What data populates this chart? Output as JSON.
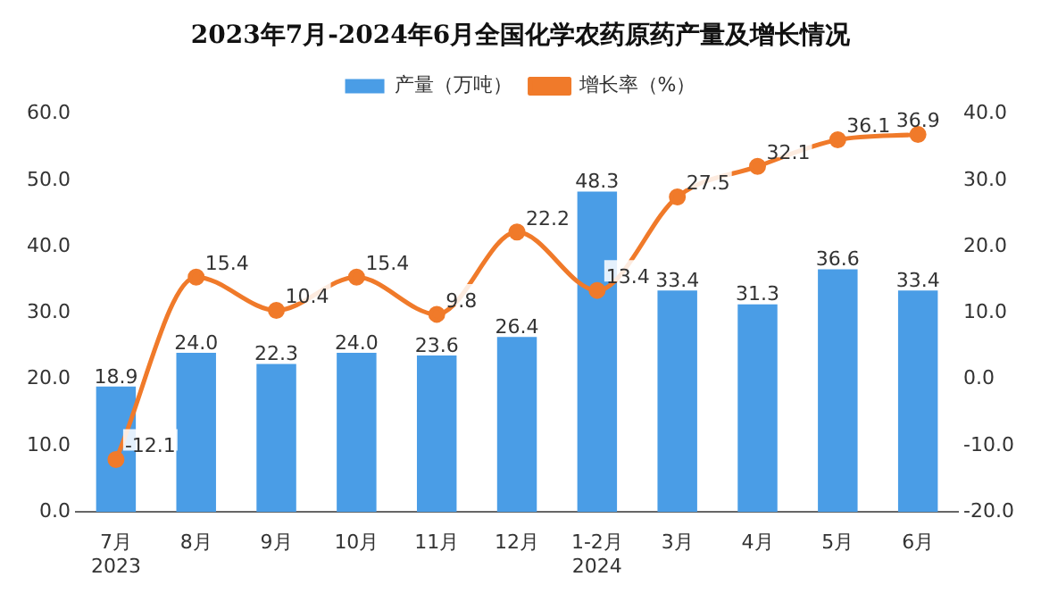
{
  "chart_data": {
    "type": "bar",
    "title": "2023年7月-2024年6月全国化学农药原药产量及增长情况",
    "categories": [
      "7月\n2023",
      "8月",
      "9月",
      "10月",
      "11月",
      "12月",
      "1-2月\n2024",
      "3月",
      "4月",
      "5月",
      "6月"
    ],
    "series": [
      {
        "name": "产量（万吨）",
        "color": "#4a9de6",
        "values": [
          18.9,
          24.0,
          22.3,
          24.0,
          23.6,
          26.4,
          48.3,
          33.4,
          31.3,
          36.6,
          33.4
        ],
        "value_labels": [
          "18.9",
          "24.0",
          "22.3",
          "24.0",
          "23.6",
          "26.4",
          "48.3",
          "33.4",
          "31.3",
          "36.6",
          "33.4"
        ]
      },
      {
        "name": "增长率（%）",
        "type": "line",
        "axis": "y2",
        "color": "#f07a2a",
        "marker": "circle",
        "values": [
          -12.1,
          15.4,
          10.4,
          15.4,
          9.8,
          22.2,
          13.4,
          27.5,
          32.1,
          36.1,
          36.9
        ],
        "value_labels": [
          "-12.1",
          "15.4",
          "10.4",
          "15.4",
          "9.8",
          "22.2",
          "13.4",
          "27.5",
          "32.1",
          "36.1",
          "36.9"
        ]
      }
    ],
    "ylim": [
      0,
      60
    ],
    "yticks": [
      {
        "value": 0,
        "label": "0.0"
      },
      {
        "value": 10,
        "label": "10.0"
      },
      {
        "value": 20,
        "label": "20.0"
      },
      {
        "value": 30,
        "label": "30.0"
      },
      {
        "value": 40,
        "label": "40.0"
      },
      {
        "value": 50,
        "label": "50.0"
      },
      {
        "value": 60,
        "label": "60.0"
      }
    ],
    "y2lim": [
      -20,
      40
    ],
    "y2ticks": [
      {
        "value": -20,
        "label": "-20.0"
      },
      {
        "value": -10,
        "label": "-10.0"
      },
      {
        "value": 0,
        "label": "0.0"
      },
      {
        "value": 10,
        "label": "10.0"
      },
      {
        "value": 20,
        "label": "20.0"
      },
      {
        "value": 30,
        "label": "30.0"
      },
      {
        "value": 40,
        "label": "40.0"
      }
    ],
    "legend": "top",
    "grid": false
  }
}
